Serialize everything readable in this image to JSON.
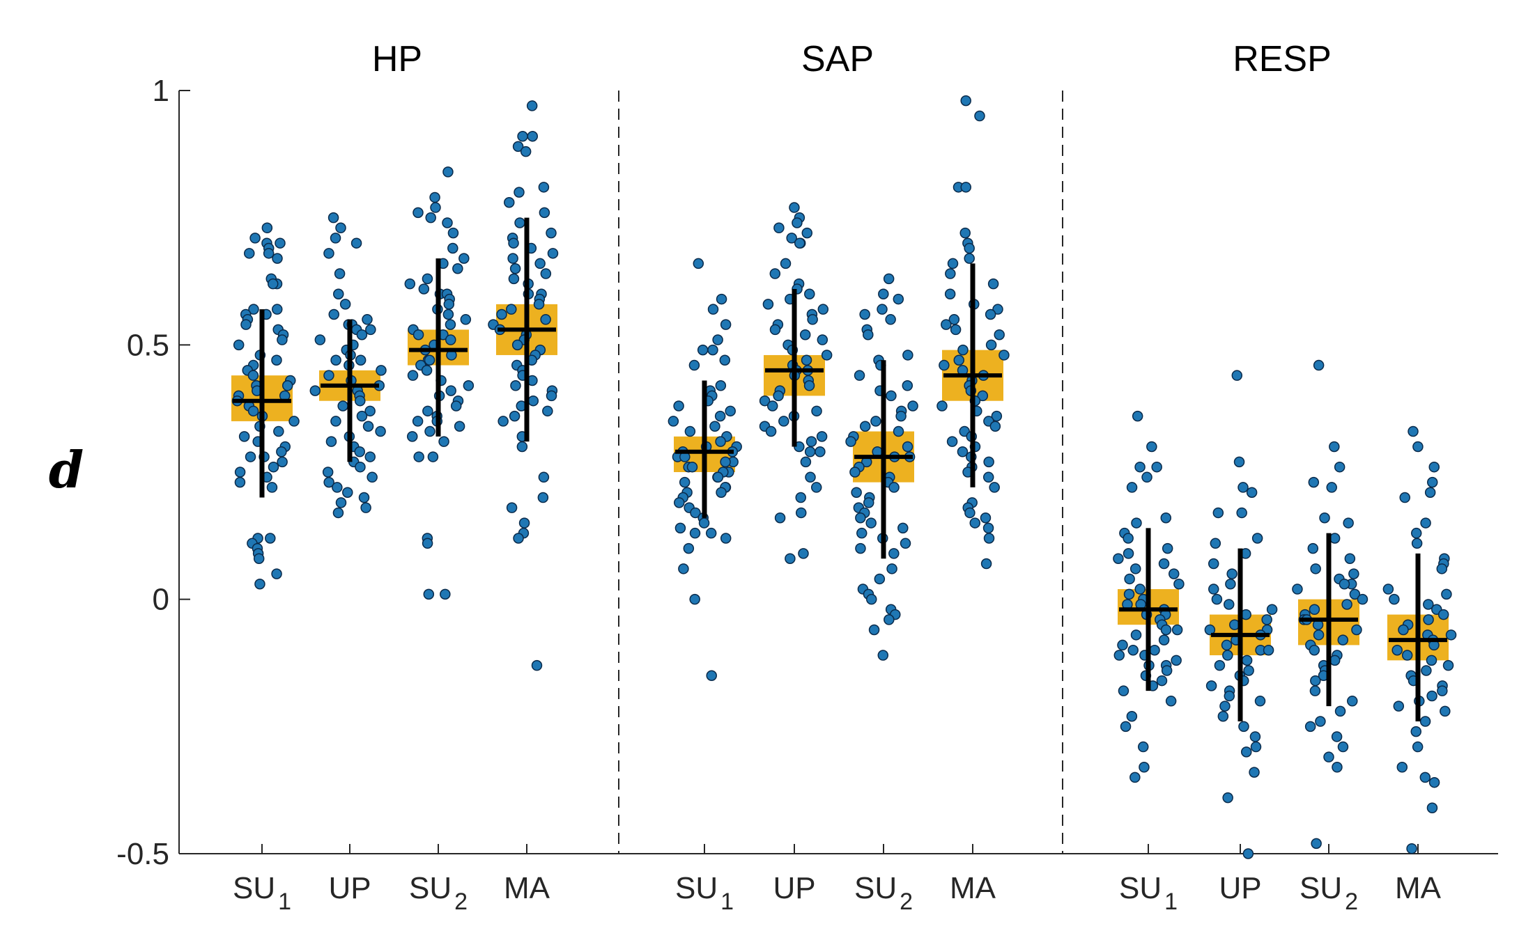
{
  "chart_data": {
    "type": "scatter",
    "ylabel": "d",
    "ylim": [
      -0.5,
      1
    ],
    "yticks": [
      {
        "value": -0.5,
        "label": "-0.5"
      },
      {
        "value": 0,
        "label": "0"
      },
      {
        "value": 0.5,
        "label": "0.5"
      },
      {
        "value": 1,
        "label": "1"
      }
    ],
    "colors": {
      "point_fill": "#1f77b4",
      "point_edge": "#0a2a4a",
      "box_fill": "#edb120",
      "line": "#000000",
      "axis": "#262626"
    },
    "panels": [
      {
        "title": "HP",
        "groups": [
          {
            "label": "SU",
            "sub": "1",
            "median": 0.39,
            "box": [
              0.35,
              0.44
            ],
            "whisker": [
              0.2,
              0.57
            ],
            "points": [
              0.73,
              0.71,
              0.7,
              0.7,
              0.69,
              0.68,
              0.68,
              0.67,
              0.63,
              0.62,
              0.62,
              0.57,
              0.57,
              0.56,
              0.56,
              0.55,
              0.54,
              0.53,
              0.52,
              0.51,
              0.5,
              0.48,
              0.47,
              0.46,
              0.45,
              0.44,
              0.43,
              0.42,
              0.42,
              0.41,
              0.4,
              0.4,
              0.39,
              0.38,
              0.37,
              0.36,
              0.35,
              0.34,
              0.33,
              0.32,
              0.31,
              0.3,
              0.29,
              0.28,
              0.28,
              0.27,
              0.26,
              0.25,
              0.24,
              0.23,
              0.22,
              0.12,
              0.12,
              0.11,
              0.1,
              0.09,
              0.08,
              0.05,
              0.03
            ]
          },
          {
            "label": "UP",
            "sub": "",
            "median": 0.42,
            "box": [
              0.39,
              0.45
            ],
            "whisker": [
              0.27,
              0.55
            ],
            "points": [
              0.75,
              0.73,
              0.71,
              0.7,
              0.68,
              0.64,
              0.6,
              0.58,
              0.56,
              0.55,
              0.54,
              0.54,
              0.53,
              0.53,
              0.52,
              0.51,
              0.5,
              0.49,
              0.48,
              0.47,
              0.47,
              0.46,
              0.45,
              0.44,
              0.43,
              0.42,
              0.41,
              0.41,
              0.4,
              0.39,
              0.38,
              0.37,
              0.36,
              0.35,
              0.34,
              0.33,
              0.32,
              0.31,
              0.3,
              0.29,
              0.28,
              0.27,
              0.26,
              0.25,
              0.24,
              0.23,
              0.22,
              0.21,
              0.2,
              0.19,
              0.18,
              0.17
            ]
          },
          {
            "label": "SU",
            "sub": "2",
            "median": 0.49,
            "box": [
              0.46,
              0.53
            ],
            "whisker": [
              0.32,
              0.67
            ],
            "points": [
              0.84,
              0.79,
              0.77,
              0.76,
              0.75,
              0.74,
              0.72,
              0.69,
              0.67,
              0.66,
              0.65,
              0.63,
              0.62,
              0.61,
              0.6,
              0.6,
              0.59,
              0.58,
              0.57,
              0.56,
              0.55,
              0.54,
              0.53,
              0.52,
              0.52,
              0.51,
              0.5,
              0.49,
              0.48,
              0.47,
              0.47,
              0.46,
              0.45,
              0.44,
              0.43,
              0.42,
              0.41,
              0.4,
              0.39,
              0.38,
              0.37,
              0.36,
              0.35,
              0.35,
              0.34,
              0.33,
              0.32,
              0.31,
              0.28,
              0.28,
              0.12,
              0.11,
              0.01,
              0.01
            ]
          },
          {
            "label": "MA",
            "sub": "",
            "median": 0.53,
            "box": [
              0.48,
              0.58
            ],
            "whisker": [
              0.31,
              0.75
            ],
            "points": [
              0.97,
              0.91,
              0.91,
              0.89,
              0.88,
              0.81,
              0.8,
              0.78,
              0.76,
              0.74,
              0.72,
              0.71,
              0.7,
              0.69,
              0.68,
              0.67,
              0.66,
              0.65,
              0.64,
              0.63,
              0.62,
              0.6,
              0.6,
              0.59,
              0.58,
              0.57,
              0.56,
              0.55,
              0.54,
              0.53,
              0.52,
              0.51,
              0.5,
              0.49,
              0.48,
              0.47,
              0.46,
              0.45,
              0.44,
              0.43,
              0.42,
              0.41,
              0.4,
              0.39,
              0.38,
              0.37,
              0.36,
              0.35,
              0.32,
              0.3,
              0.24,
              0.2,
              0.18,
              0.15,
              0.13,
              0.12,
              -0.13
            ]
          }
        ]
      },
      {
        "title": "SAP",
        "groups": [
          {
            "label": "SU",
            "sub": "1",
            "median": 0.29,
            "box": [
              0.25,
              0.32
            ],
            "whisker": [
              0.16,
              0.43
            ],
            "points": [
              0.66,
              0.59,
              0.57,
              0.54,
              0.51,
              0.49,
              0.49,
              0.47,
              0.46,
              0.42,
              0.41,
              0.4,
              0.39,
              0.38,
              0.37,
              0.36,
              0.35,
              0.34,
              0.33,
              0.32,
              0.31,
              0.3,
              0.3,
              0.29,
              0.29,
              0.28,
              0.28,
              0.27,
              0.27,
              0.26,
              0.26,
              0.25,
              0.25,
              0.24,
              0.24,
              0.23,
              0.22,
              0.22,
              0.21,
              0.21,
              0.2,
              0.19,
              0.18,
              0.17,
              0.16,
              0.15,
              0.14,
              0.13,
              0.13,
              0.12,
              0.1,
              0.06,
              0.0,
              -0.15
            ]
          },
          {
            "label": "UP",
            "sub": "",
            "median": 0.45,
            "box": [
              0.4,
              0.48
            ],
            "whisker": [
              0.3,
              0.61
            ],
            "points": [
              0.77,
              0.75,
              0.74,
              0.73,
              0.72,
              0.71,
              0.7,
              0.7,
              0.66,
              0.64,
              0.62,
              0.61,
              0.6,
              0.59,
              0.58,
              0.57,
              0.56,
              0.55,
              0.54,
              0.53,
              0.52,
              0.51,
              0.5,
              0.49,
              0.48,
              0.47,
              0.46,
              0.45,
              0.45,
              0.44,
              0.43,
              0.42,
              0.41,
              0.4,
              0.39,
              0.38,
              0.37,
              0.36,
              0.35,
              0.34,
              0.33,
              0.32,
              0.31,
              0.3,
              0.29,
              0.29,
              0.27,
              0.24,
              0.22,
              0.2,
              0.17,
              0.16,
              0.09,
              0.08
            ]
          },
          {
            "label": "SU",
            "sub": "2",
            "median": 0.28,
            "box": [
              0.23,
              0.33
            ],
            "whisker": [
              0.08,
              0.47
            ],
            "points": [
              0.63,
              0.6,
              0.59,
              0.57,
              0.56,
              0.55,
              0.53,
              0.52,
              0.48,
              0.47,
              0.46,
              0.44,
              0.42,
              0.41,
              0.4,
              0.38,
              0.37,
              0.36,
              0.35,
              0.34,
              0.33,
              0.32,
              0.31,
              0.3,
              0.29,
              0.28,
              0.28,
              0.27,
              0.26,
              0.25,
              0.24,
              0.23,
              0.22,
              0.21,
              0.2,
              0.19,
              0.18,
              0.17,
              0.16,
              0.15,
              0.14,
              0.13,
              0.12,
              0.11,
              0.1,
              0.09,
              0.06,
              0.04,
              0.02,
              0.01,
              0.0,
              -0.02,
              -0.03,
              -0.04,
              -0.06,
              -0.11
            ]
          },
          {
            "label": "MA",
            "sub": "",
            "median": 0.44,
            "box": [
              0.39,
              0.49
            ],
            "whisker": [
              0.22,
              0.66
            ],
            "points": [
              0.98,
              0.95,
              0.81,
              0.81,
              0.72,
              0.7,
              0.69,
              0.67,
              0.66,
              0.64,
              0.62,
              0.6,
              0.58,
              0.57,
              0.56,
              0.55,
              0.54,
              0.53,
              0.52,
              0.5,
              0.49,
              0.48,
              0.47,
              0.46,
              0.45,
              0.44,
              0.43,
              0.42,
              0.41,
              0.4,
              0.39,
              0.38,
              0.37,
              0.36,
              0.35,
              0.34,
              0.33,
              0.32,
              0.31,
              0.3,
              0.29,
              0.28,
              0.27,
              0.26,
              0.25,
              0.24,
              0.22,
              0.19,
              0.18,
              0.17,
              0.16,
              0.15,
              0.14,
              0.12,
              0.07
            ]
          }
        ]
      },
      {
        "title": "RESP",
        "groups": [
          {
            "label": "SU",
            "sub": "1",
            "median": -0.02,
            "box": [
              -0.05,
              0.02
            ],
            "whisker": [
              -0.18,
              0.14
            ],
            "points": [
              0.36,
              0.3,
              0.26,
              0.26,
              0.24,
              0.22,
              0.16,
              0.15,
              0.13,
              0.12,
              0.1,
              0.09,
              0.08,
              0.07,
              0.06,
              0.05,
              0.04,
              0.03,
              0.02,
              0.01,
              0.0,
              -0.01,
              -0.01,
              -0.02,
              -0.03,
              -0.03,
              -0.04,
              -0.05,
              -0.06,
              -0.06,
              -0.07,
              -0.08,
              -0.09,
              -0.1,
              -0.1,
              -0.11,
              -0.11,
              -0.12,
              -0.13,
              -0.13,
              -0.14,
              -0.15,
              -0.16,
              -0.17,
              -0.18,
              -0.2,
              -0.23,
              -0.25,
              -0.29,
              -0.33,
              -0.35
            ]
          },
          {
            "label": "UP",
            "sub": "",
            "median": -0.07,
            "box": [
              -0.11,
              -0.03
            ],
            "whisker": [
              -0.24,
              0.1
            ],
            "points": [
              0.44,
              0.27,
              0.22,
              0.21,
              0.17,
              0.17,
              0.12,
              0.11,
              0.09,
              0.07,
              0.05,
              0.03,
              0.02,
              0.0,
              -0.01,
              -0.02,
              -0.03,
              -0.04,
              -0.05,
              -0.06,
              -0.06,
              -0.07,
              -0.08,
              -0.08,
              -0.09,
              -0.1,
              -0.1,
              -0.11,
              -0.12,
              -0.13,
              -0.14,
              -0.15,
              -0.16,
              -0.17,
              -0.18,
              -0.19,
              -0.2,
              -0.21,
              -0.23,
              -0.25,
              -0.27,
              -0.29,
              -0.3,
              -0.34,
              -0.39,
              -0.5
            ]
          },
          {
            "label": "SU",
            "sub": "2",
            "median": -0.04,
            "box": [
              -0.09,
              0.0
            ],
            "whisker": [
              -0.21,
              0.13
            ],
            "points": [
              0.46,
              0.3,
              0.26,
              0.23,
              0.22,
              0.16,
              0.15,
              0.12,
              0.1,
              0.08,
              0.06,
              0.05,
              0.04,
              0.03,
              0.03,
              0.02,
              0.01,
              0.0,
              -0.01,
              -0.02,
              -0.03,
              -0.04,
              -0.04,
              -0.05,
              -0.06,
              -0.07,
              -0.08,
              -0.09,
              -0.1,
              -0.11,
              -0.12,
              -0.13,
              -0.14,
              -0.15,
              -0.16,
              -0.18,
              -0.2,
              -0.22,
              -0.24,
              -0.25,
              -0.27,
              -0.29,
              -0.31,
              -0.33,
              -0.48
            ]
          },
          {
            "label": "MA",
            "sub": "",
            "median": -0.08,
            "box": [
              -0.12,
              -0.03
            ],
            "whisker": [
              -0.24,
              0.09
            ],
            "points": [
              0.33,
              0.3,
              0.26,
              0.23,
              0.21,
              0.2,
              0.15,
              0.13,
              0.11,
              0.08,
              0.07,
              0.06,
              0.02,
              0.01,
              0.0,
              -0.01,
              -0.02,
              -0.03,
              -0.04,
              -0.05,
              -0.06,
              -0.07,
              -0.07,
              -0.08,
              -0.09,
              -0.1,
              -0.11,
              -0.12,
              -0.13,
              -0.14,
              -0.15,
              -0.16,
              -0.17,
              -0.18,
              -0.19,
              -0.2,
              -0.21,
              -0.22,
              -0.24,
              -0.26,
              -0.29,
              -0.33,
              -0.35,
              -0.36,
              -0.41,
              -0.49
            ]
          }
        ]
      }
    ]
  }
}
